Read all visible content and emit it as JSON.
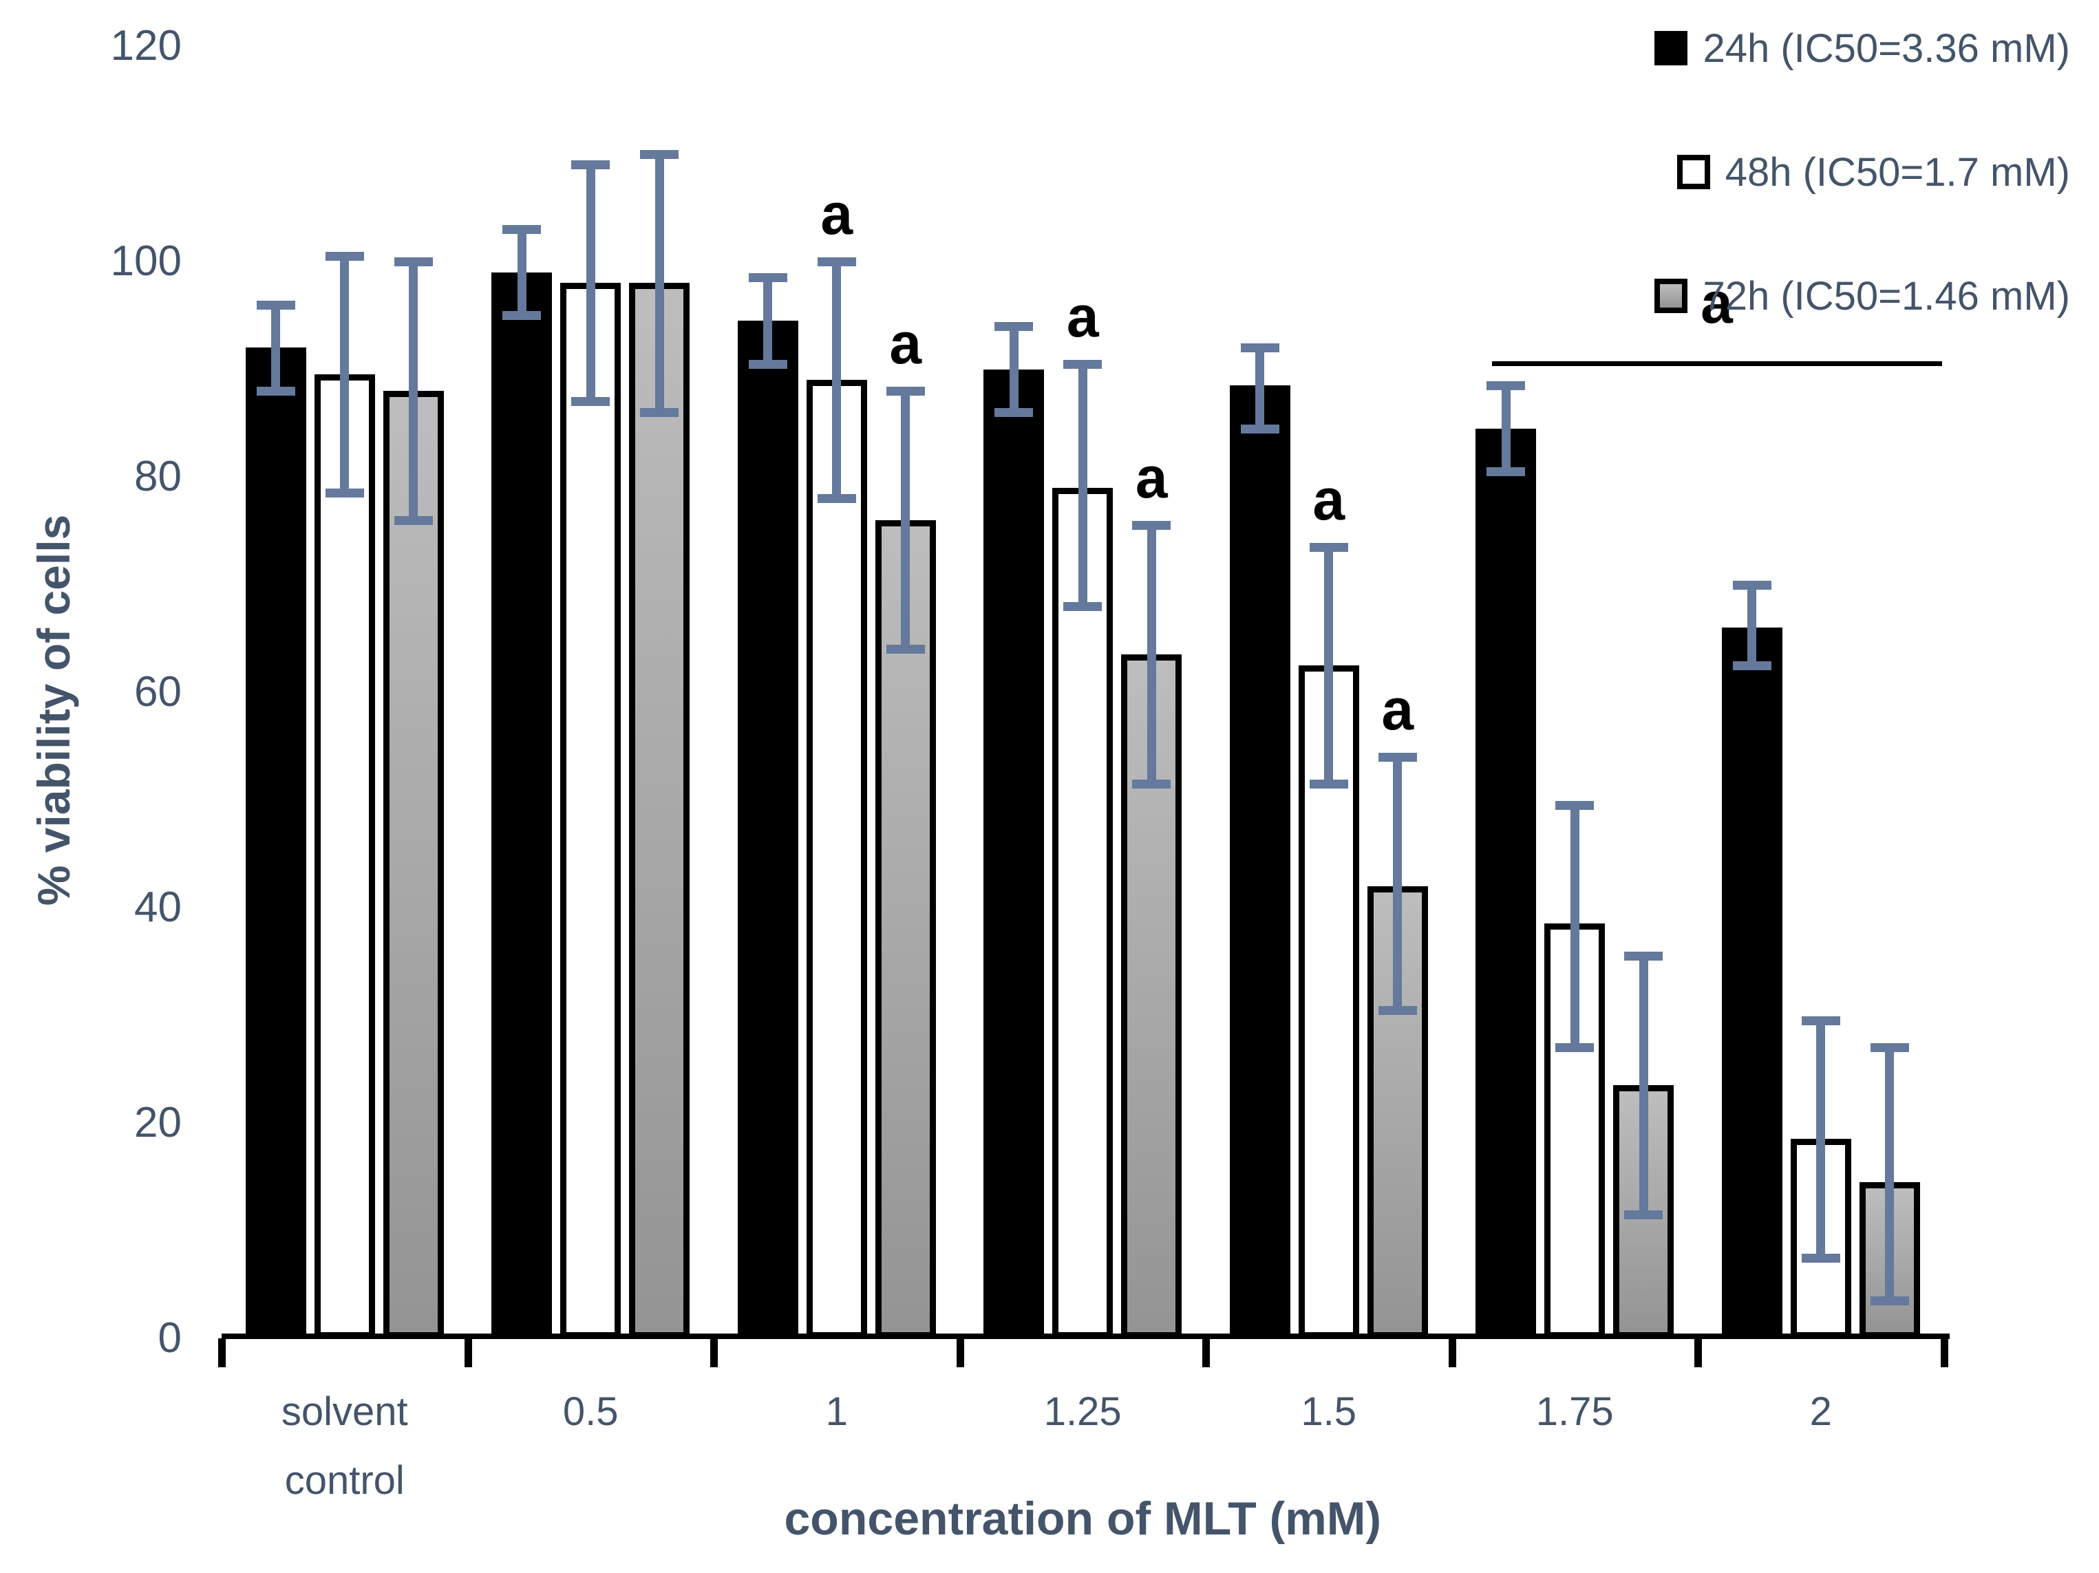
{
  "colors": {
    "text": "#44546A",
    "error_bar": "#64799B",
    "axis": "#000000",
    "bar_black": "#000000",
    "bar_white": "#FFFFFF",
    "bar_gray_top": "#BDBDBD",
    "bar_gray_bottom": "#949494",
    "annotation": "#000000",
    "background": "#FFFFFF"
  },
  "chart_data": {
    "type": "bar",
    "title": "",
    "xlabel": "concentration of MLT (mM)",
    "ylabel": "% viability of cells",
    "ylim": [
      0,
      120
    ],
    "yticks": [
      0,
      20,
      40,
      60,
      80,
      100,
      120
    ],
    "grid": false,
    "legend_position": "top-right",
    "categories": [
      "solvent control",
      "0.5",
      "1",
      "1.25",
      "1.5",
      "1.75",
      "2"
    ],
    "series": [
      {
        "name": "24h (IC50=3.36 mM)",
        "style": "black",
        "values": [
          92,
          99,
          94.5,
          90,
          88.5,
          84.5,
          66
        ],
        "err_hi": [
          96,
          103,
          98.5,
          94,
          92,
          88.5,
          70
        ],
        "err_lo": [
          88,
          95,
          90.5,
          86,
          84.5,
          80.5,
          62.5
        ]
      },
      {
        "name": "48h (IC50=1.7 mM)",
        "style": "white",
        "values": [
          89.5,
          98,
          89,
          79,
          62.5,
          38.5,
          18.5
        ],
        "err_hi": [
          100.5,
          109,
          100,
          90.5,
          73.5,
          49.5,
          29.5
        ],
        "err_lo": [
          78.5,
          87,
          78,
          68,
          51.5,
          27,
          7.5
        ]
      },
      {
        "name": "72h (IC50=1.46 mM)",
        "style": "gray",
        "values": [
          88,
          98,
          76,
          63.5,
          42,
          23.5,
          14.5
        ],
        "err_hi": [
          100,
          110,
          88,
          75.5,
          54,
          35.5,
          27
        ],
        "err_lo": [
          76,
          86,
          64,
          51.5,
          30.5,
          11.5,
          3.5
        ]
      }
    ],
    "annotations": {
      "sig_letter": "a",
      "points": [
        {
          "group": 2,
          "series": 1
        },
        {
          "group": 2,
          "series": 2
        },
        {
          "group": 3,
          "series": 1
        },
        {
          "group": 3,
          "series": 2
        },
        {
          "group": 4,
          "series": 1
        },
        {
          "group": 4,
          "series": 2
        }
      ],
      "bracket": {
        "label": "a",
        "from_group": 5,
        "to_group": 6
      }
    }
  }
}
